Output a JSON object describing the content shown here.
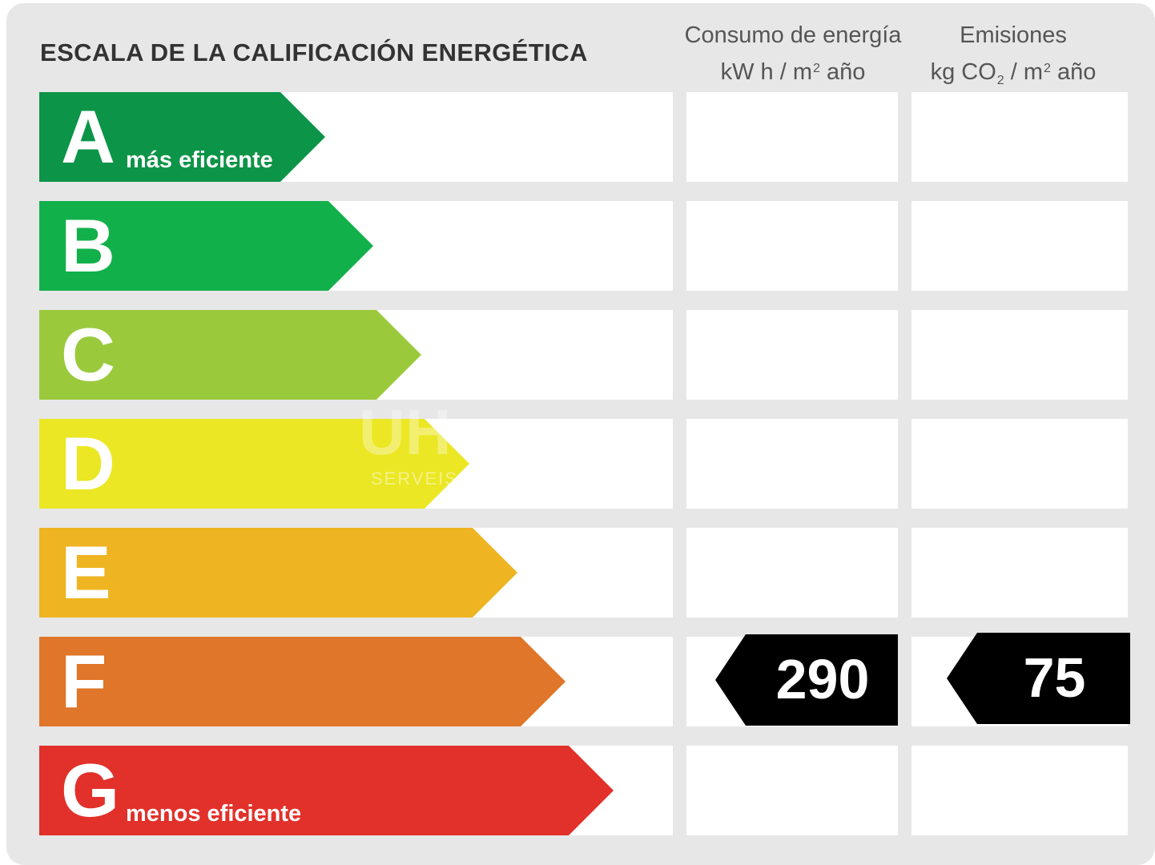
{
  "title": "ESCALA DE LA CALIFICACIÓN ENERGÉTICA",
  "columns": {
    "consumo": {
      "line1": "Consumo de energía",
      "unit_a": "kW h  / m",
      "sup": "2",
      "unit_b": " año"
    },
    "emisiones": {
      "line1": "Emisiones",
      "unit_a": "kg CO",
      "sub": "2",
      "unit_c": "  / m",
      "sup": "2",
      "unit_b": " año"
    }
  },
  "ratings": [
    {
      "letter": "A",
      "label": "más eficiente",
      "color": "#0c9448"
    },
    {
      "letter": "B",
      "label": "",
      "color": "#12b04a"
    },
    {
      "letter": "C",
      "label": "",
      "color": "#9aca3c"
    },
    {
      "letter": "D",
      "label": "",
      "color": "#ebe724"
    },
    {
      "letter": "E",
      "label": "",
      "color": "#efb422"
    },
    {
      "letter": "F",
      "label": "",
      "color": "#df7629"
    },
    {
      "letter": "G",
      "label": "menos eficiente",
      "color": "#e2302a"
    }
  ],
  "result": {
    "rating": "F",
    "consumo_value": "290",
    "emisiones_value": "75"
  },
  "watermark": {
    "main": "UH",
    "sub": "SERVEIS"
  }
}
